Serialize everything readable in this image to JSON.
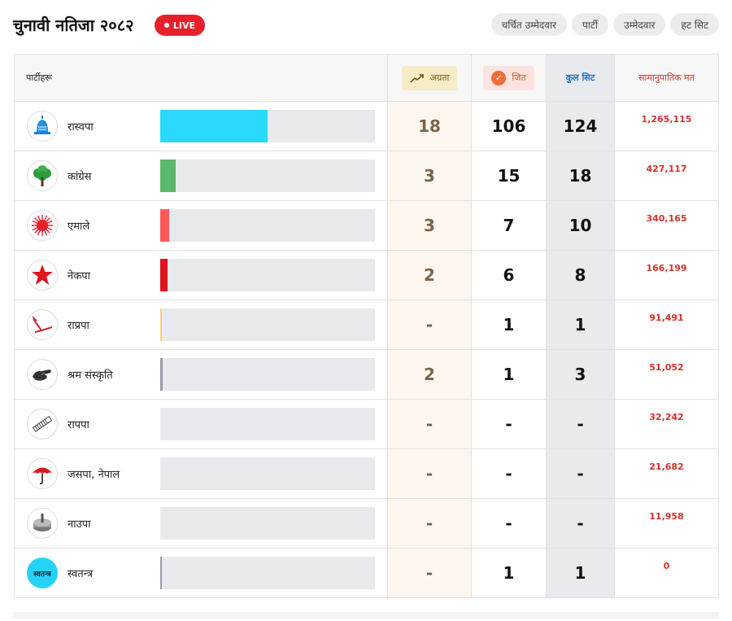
{
  "header": {
    "title": "चुनावी नतिजा २०८२",
    "live_label": "LIVE",
    "tabs": [
      "चर्चित उम्मेदवार",
      "पार्टी",
      "उम्मेदवार",
      "हट सिट"
    ]
  },
  "table": {
    "columns": {
      "party": "पार्टीहरू",
      "leading": "अग्रता",
      "won": "जित",
      "total": "कुल सिट",
      "votes": "सामानुपातिक मत"
    },
    "rows": [
      {
        "name": "रास्वपा",
        "logo": "bell-icon",
        "leading": "18",
        "won": "106",
        "total": "124",
        "votes": "1,265,115",
        "color": "#2ad9fb",
        "total_seats": 124
      },
      {
        "name": "कांग्रेस",
        "logo": "tree-icon",
        "leading": "3",
        "won": "15",
        "total": "18",
        "votes": "427,117",
        "color": "#5cb86a",
        "total_seats": 18
      },
      {
        "name": "एमाले",
        "logo": "sun-icon",
        "leading": "3",
        "won": "7",
        "total": "10",
        "votes": "340,165",
        "color": "#fb5a5a",
        "total_seats": 10
      },
      {
        "name": "नेकपा",
        "logo": "star-icon",
        "leading": "2",
        "won": "6",
        "total": "8",
        "votes": "166,199",
        "color": "#e0141c",
        "total_seats": 8
      },
      {
        "name": "राप्रपा",
        "logo": "plough-icon",
        "leading": "-",
        "won": "1",
        "total": "1",
        "votes": "91,491",
        "color": "#f4d27a",
        "total_seats": 1
      },
      {
        "name": "श्रम संस्कृति",
        "logo": "hand-icon",
        "leading": "2",
        "won": "1",
        "total": "3",
        "votes": "51,052",
        "color": "#9a9caa",
        "total_seats": 3
      },
      {
        "name": "रापपा",
        "logo": "pen-icon",
        "leading": "-",
        "won": "-",
        "total": "-",
        "votes": "32,242",
        "color": "#cccccc",
        "total_seats": 0
      },
      {
        "name": "जसपा, नेपाल",
        "logo": "umbrella-icon",
        "leading": "-",
        "won": "-",
        "total": "-",
        "votes": "21,682",
        "color": "#cccccc",
        "total_seats": 0
      },
      {
        "name": "नाउपा",
        "logo": "millstone-icon",
        "leading": "-",
        "won": "-",
        "total": "-",
        "votes": "11,958",
        "color": "#cccccc",
        "total_seats": 0
      },
      {
        "name": "स्वतन्त्र",
        "logo": "svatantra-icon",
        "logo_text": "स्वतन्त्र",
        "leading": "-",
        "won": "1",
        "total": "1",
        "votes": "0",
        "color": "#9a9caa",
        "total_seats": 1
      }
    ]
  }
}
